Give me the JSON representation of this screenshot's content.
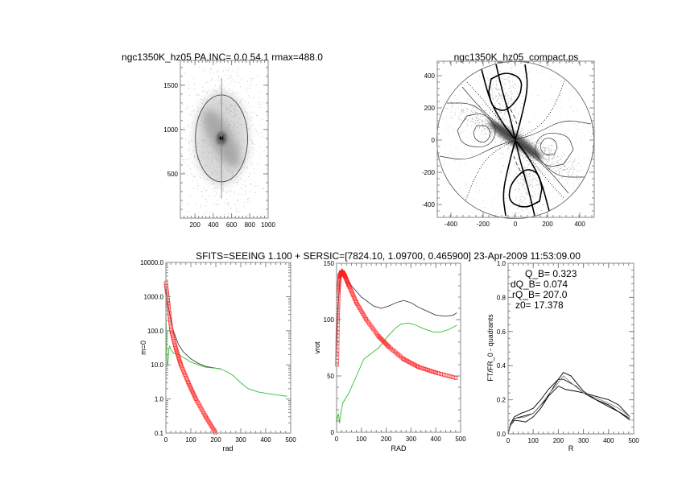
{
  "suptitle": "SFITS=SEEING 1.100 + SERSIC=[7824.10, 1.09700, 0.465900]  23-Apr-2009 11:53:09.00",
  "colors": {
    "model": "#ff2020",
    "total": "#404040",
    "residual": "#30c030",
    "axis": "#888888"
  },
  "chart_data": [
    {
      "id": "image",
      "type": "heatmap",
      "title": "ngc1350K_hz05 PA,INC=  0.0 54.1 rmax=488.0",
      "xlim": [
        40,
        1000
      ],
      "ylim": [
        0,
        1780
      ],
      "xticks": [
        "200",
        "400",
        "600",
        "800",
        "1000"
      ],
      "xtick_values": [
        200,
        400,
        600,
        800,
        1000
      ],
      "yticks": [
        "500",
        "1000",
        "1500"
      ],
      "ytick_values": [
        500,
        1000,
        1500
      ],
      "galaxy_center": [
        490,
        900
      ],
      "ellipse": {
        "center": [
          490,
          900
        ],
        "rx": 285,
        "ry": 490
      },
      "major_axis_line": {
        "x": 490,
        "y": [
          220,
          1580
        ]
      }
    },
    {
      "id": "deprojected",
      "type": "contour",
      "title": "ngc1350K_hz05_compact.ps",
      "xlim": [
        -485,
        490
      ],
      "ylim": [
        -480,
        490
      ],
      "xticks": [
        "-400",
        "-200",
        "0",
        "200",
        "400"
      ],
      "xtick_values": [
        -400,
        -200,
        0,
        200,
        400
      ],
      "yticks": [
        "-400",
        "-200",
        "0",
        "200",
        "400"
      ],
      "ytick_values": [
        -400,
        -200,
        0,
        200,
        400
      ],
      "rmax": 488,
      "contours": [
        {
          "style": "thick",
          "closed": true,
          "points": [
            [
              -150,
              380
            ],
            [
              -60,
              425
            ],
            [
              40,
              385
            ],
            [
              35,
              290
            ],
            [
              -10,
              225
            ],
            [
              -70,
              175
            ],
            [
              -145,
              205
            ],
            [
              -165,
              300
            ]
          ]
        },
        {
          "style": "thick",
          "closed": true,
          "points": [
            [
              150,
              -380
            ],
            [
              60,
              -425
            ],
            [
              -40,
              -385
            ],
            [
              -35,
              -290
            ],
            [
              10,
              -225
            ],
            [
              70,
              -175
            ],
            [
              145,
              -205
            ],
            [
              165,
              -300
            ]
          ]
        },
        {
          "style": "thin",
          "closed": true,
          "points": [
            [
              -300,
              150
            ],
            [
              -200,
              170
            ],
            [
              -120,
              100
            ],
            [
              -130,
              0
            ],
            [
              -200,
              -50
            ],
            [
              -330,
              -30
            ],
            [
              -360,
              60
            ]
          ]
        },
        {
          "style": "thin",
          "closed": true,
          "points": [
            [
              300,
              -150
            ],
            [
              200,
              -170
            ],
            [
              120,
              -100
            ],
            [
              130,
              0
            ],
            [
              200,
              50
            ],
            [
              330,
              30
            ],
            [
              360,
              -60
            ]
          ]
        },
        {
          "style": "thin",
          "closed": true,
          "points": [
            [
              -240,
              90
            ],
            [
              -170,
              90
            ],
            [
              -150,
              30
            ],
            [
              -190,
              -20
            ],
            [
              -250,
              0
            ],
            [
              -260,
              50
            ]
          ]
        },
        {
          "style": "thin",
          "closed": true,
          "points": [
            [
              240,
              -90
            ],
            [
              170,
              -90
            ],
            [
              150,
              -30
            ],
            [
              190,
              20
            ],
            [
              250,
              0
            ],
            [
              260,
              -50
            ]
          ]
        },
        {
          "style": "thick",
          "closed": false,
          "points": [
            [
              -210,
              440
            ],
            [
              -160,
              250
            ],
            [
              -90,
              120
            ],
            [
              0,
              0
            ],
            [
              90,
              -120
            ],
            [
              160,
              -250
            ],
            [
              210,
              -440
            ]
          ]
        },
        {
          "style": "thick",
          "closed": false,
          "points": [
            [
              -120,
              470
            ],
            [
              -80,
              300
            ],
            [
              -30,
              130
            ],
            [
              0,
              0
            ],
            [
              30,
              -130
            ],
            [
              80,
              -300
            ],
            [
              120,
              -470
            ]
          ]
        },
        {
          "style": "thick",
          "closed": false,
          "points": [
            [
              60,
              470
            ],
            [
              80,
              330
            ],
            [
              40,
              150
            ],
            [
              0,
              0
            ],
            [
              -40,
              -150
            ],
            [
              -80,
              -330
            ],
            [
              -60,
              -470
            ]
          ]
        },
        {
          "style": "thin",
          "closed": false,
          "points": [
            [
              -430,
              230
            ],
            [
              -250,
              230
            ],
            [
              -120,
              80
            ],
            [
              0,
              0
            ],
            [
              120,
              -80
            ],
            [
              250,
              -230
            ],
            [
              430,
              -230
            ]
          ]
        },
        {
          "style": "thin",
          "closed": false,
          "points": [
            [
              -470,
              -100
            ],
            [
              -300,
              -130
            ],
            [
              -130,
              -40
            ],
            [
              0,
              0
            ],
            [
              130,
              40
            ],
            [
              300,
              130
            ],
            [
              470,
              100
            ]
          ]
        },
        {
          "style": "thin",
          "closed": false,
          "points": [
            [
              -330,
              330
            ],
            [
              -220,
              200
            ],
            [
              -100,
              90
            ],
            [
              0,
              0
            ],
            [
              100,
              -90
            ],
            [
              220,
              -200
            ],
            [
              330,
              -330
            ]
          ]
        },
        {
          "style": "dotted",
          "closed": false,
          "points": [
            [
              -300,
              360
            ],
            [
              -200,
              250
            ],
            [
              -90,
              110
            ],
            [
              0,
              0
            ],
            [
              90,
              -110
            ],
            [
              200,
              -250
            ],
            [
              300,
              -360
            ]
          ]
        },
        {
          "style": "dotted",
          "closed": false,
          "points": [
            [
              310,
              380
            ],
            [
              240,
              200
            ],
            [
              150,
              80
            ],
            [
              0,
              0
            ],
            [
              -150,
              -80
            ],
            [
              -240,
              -200
            ],
            [
              -310,
              -380
            ]
          ]
        },
        {
          "style": "dashed",
          "closed": false,
          "points": [
            [
              -60,
              220
            ],
            [
              -20,
              180
            ],
            [
              10,
              100
            ]
          ]
        },
        {
          "style": "dashed",
          "closed": false,
          "points": [
            [
              60,
              -220
            ],
            [
              20,
              -180
            ],
            [
              -10,
              -100
            ]
          ]
        }
      ]
    },
    {
      "id": "m0-profile",
      "type": "line",
      "yscale": "log",
      "xlabel": "rad",
      "ylabel": "m=0",
      "xlim": [
        0,
        500
      ],
      "ylim": [
        0.1,
        10000
      ],
      "xticks": [
        "0",
        "100",
        "200",
        "300",
        "400",
        "500"
      ],
      "xtick_values": [
        0,
        100,
        200,
        300,
        400,
        500
      ],
      "yticks": [
        "0.1",
        "1.0",
        "10.0",
        "100.0",
        "1000.0",
        "10000.0"
      ],
      "ytick_values": [
        0.1,
        1,
        10,
        100,
        1000,
        10000
      ],
      "series": [
        {
          "role": "total",
          "style": "line",
          "color": "#404040",
          "x": [
            0,
            5,
            10,
            20,
            30,
            50,
            70,
            100,
            130,
            160,
            200,
            220
          ],
          "y": [
            2000,
            900,
            500,
            200,
            100,
            40,
            24,
            15,
            11,
            9,
            8,
            7.6
          ]
        },
        {
          "role": "residual",
          "style": "line",
          "color": "#30c030",
          "x": [
            0,
            2,
            5,
            8,
            12,
            15,
            20,
            30,
            50,
            80,
            100,
            130,
            160,
            200,
            220,
            250,
            270,
            300,
            330,
            370,
            420,
            450,
            485
          ],
          "y": [
            400,
            100,
            10,
            10,
            30,
            35,
            28,
            22,
            20,
            15,
            12,
            10,
            8.5,
            8,
            7.5,
            6,
            4.8,
            3,
            2,
            1.6,
            1.4,
            1.3,
            1.2
          ]
        },
        {
          "role": "model",
          "style": "markers",
          "color": "#ff2020",
          "x": [
            0,
            10,
            22,
            40,
            60,
            90,
            120,
            160,
            200
          ],
          "y": [
            2500,
            600,
            100,
            30,
            10,
            3,
            1,
            0.3,
            0.1
          ]
        }
      ]
    },
    {
      "id": "rotation-curve",
      "type": "line",
      "xlabel": "RAD",
      "ylabel": "vrot",
      "xlim": [
        0,
        500
      ],
      "ylim": [
        0,
        150
      ],
      "xticks": [
        "0",
        "100",
        "200",
        "300",
        "400",
        "500"
      ],
      "xtick_values": [
        0,
        100,
        200,
        300,
        400,
        500
      ],
      "yticks": [
        "0",
        "50",
        "100",
        "150"
      ],
      "ytick_values": [
        0,
        50,
        100,
        150
      ],
      "series": [
        {
          "role": "total",
          "style": "line",
          "color": "#404040",
          "x": [
            0,
            5,
            15,
            22,
            40,
            60,
            100,
            150,
            180,
            210,
            240,
            270,
            300,
            330,
            370,
            400,
            440,
            470,
            485
          ],
          "y": [
            60,
            110,
            140,
            145,
            138,
            130,
            120,
            112,
            110,
            112,
            115,
            117,
            115,
            111,
            107,
            104,
            103,
            104,
            106
          ]
        },
        {
          "role": "residual",
          "style": "line",
          "color": "#30c030",
          "x": [
            0,
            5,
            8,
            12,
            18,
            25,
            50,
            80,
            110,
            140,
            170,
            210,
            240,
            260,
            290,
            320,
            350,
            390,
            420,
            450,
            485
          ],
          "y": [
            8,
            15,
            16,
            8,
            18,
            26,
            35,
            50,
            65,
            70,
            75,
            86,
            93,
            96,
            97,
            95,
            92,
            89,
            89,
            91,
            95
          ]
        },
        {
          "role": "model",
          "style": "markers",
          "color": "#ff2020",
          "x": [
            2,
            5,
            8,
            12,
            18,
            25,
            35,
            50,
            80,
            120,
            170,
            210,
            270,
            330,
            400,
            485
          ],
          "y": [
            60,
            100,
            125,
            138,
            142,
            142,
            138,
            130,
            115,
            100,
            85,
            76,
            65,
            58,
            53,
            48
          ]
        }
      ]
    },
    {
      "id": "bar-strength",
      "type": "line",
      "xlabel": "R",
      "ylabel": "FT/FR_0 - quadrants",
      "xlim": [
        0,
        500
      ],
      "ylim": [
        0,
        1
      ],
      "xticks": [
        "0",
        "100",
        "200",
        "300",
        "400",
        "500"
      ],
      "xtick_values": [
        0,
        100,
        200,
        300,
        400,
        500
      ],
      "yticks": [
        "0.0",
        "0.2",
        "0.4",
        "0.6",
        "0.8",
        "1.0"
      ],
      "ytick_values": [
        0,
        0.2,
        0.4,
        0.6,
        0.8,
        1.0
      ],
      "annotations": [
        "Q_B=  0.323",
        "dQ_B=  0.074",
        "rQ_B=  207.0",
        "z0= 17.378"
      ],
      "series": [
        {
          "role": "quadrant",
          "style": "line",
          "color": "#000000",
          "x": [
            0,
            10,
            25,
            50,
            100,
            150,
            200,
            220,
            250,
            300,
            350,
            400,
            440,
            485
          ],
          "y": [
            0,
            0.06,
            0.09,
            0.1,
            0.12,
            0.2,
            0.32,
            0.36,
            0.34,
            0.25,
            0.2,
            0.16,
            0.13,
            0.09
          ]
        },
        {
          "role": "quadrant",
          "style": "line",
          "color": "#000000",
          "x": [
            0,
            10,
            25,
            50,
            70,
            100,
            130,
            160,
            200,
            230,
            270,
            300,
            350,
            400,
            440,
            485
          ],
          "y": [
            0,
            0.05,
            0.08,
            0.075,
            0.07,
            0.1,
            0.15,
            0.22,
            0.28,
            0.26,
            0.25,
            0.24,
            0.22,
            0.2,
            0.17,
            0.1
          ]
        },
        {
          "role": "quadrant",
          "style": "line",
          "color": "#000000",
          "x": [
            0,
            10,
            25,
            50,
            70,
            100,
            130,
            160,
            200,
            220,
            270,
            300,
            350,
            400,
            440,
            485
          ],
          "y": [
            0,
            0.06,
            0.1,
            0.12,
            0.13,
            0.15,
            0.2,
            0.26,
            0.32,
            0.32,
            0.28,
            0.24,
            0.2,
            0.17,
            0.13,
            0.08
          ]
        },
        {
          "role": "quadrant",
          "style": "line",
          "color": "#808080",
          "x": [
            0,
            10,
            25,
            50,
            70,
            100,
            130,
            160,
            200,
            220,
            250,
            300,
            350,
            400,
            440,
            485
          ],
          "y": [
            0,
            0.05,
            0.09,
            0.095,
            0.1,
            0.12,
            0.17,
            0.23,
            0.3,
            0.34,
            0.3,
            0.24,
            0.21,
            0.18,
            0.15,
            0.1
          ]
        }
      ]
    }
  ]
}
